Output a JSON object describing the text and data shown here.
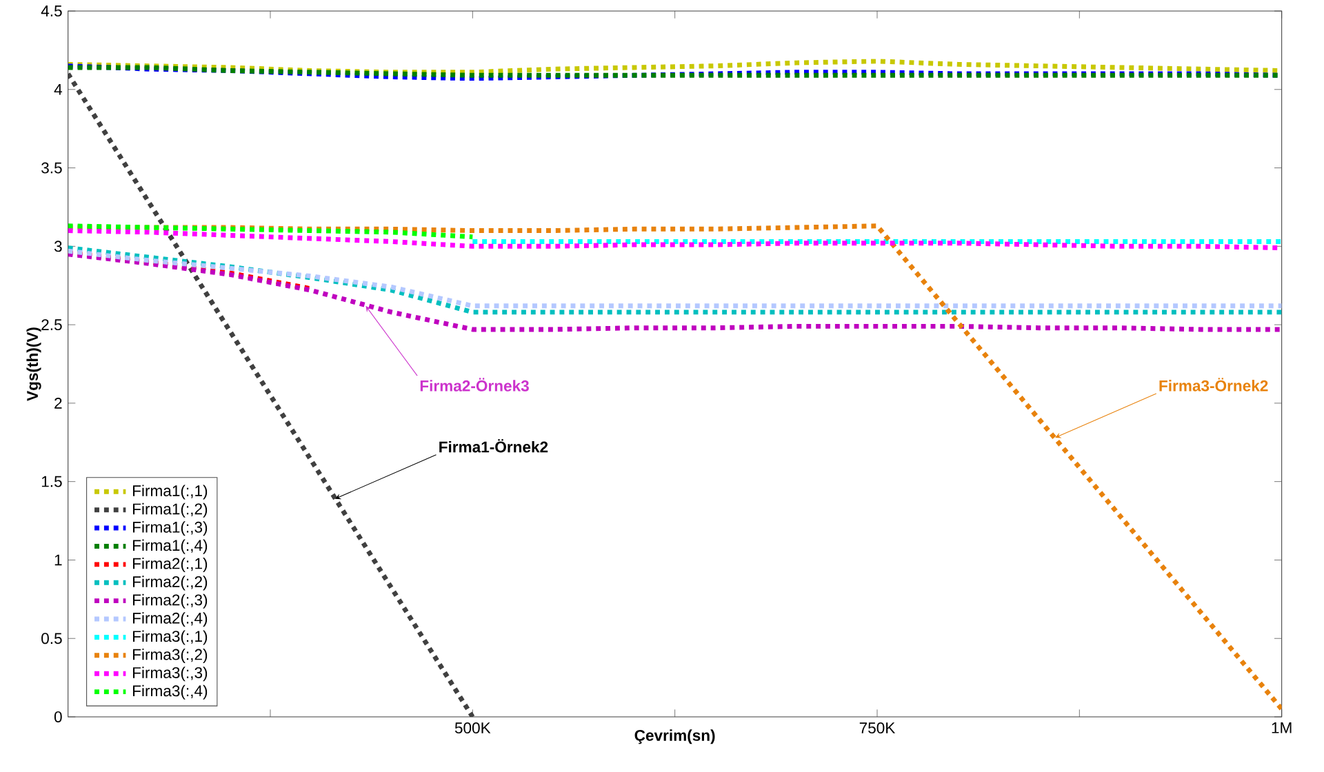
{
  "chart_data": {
    "type": "line",
    "xlabel": "Çevrim(sn)",
    "ylabel": "Vgs(th)(V)",
    "x": [
      250000,
      300000,
      350000,
      400000,
      450000,
      500000,
      550000,
      600000,
      650000,
      700000,
      750000,
      800000,
      850000,
      900000,
      950000,
      1000000
    ],
    "xlim": [
      250000,
      1000000
    ],
    "ylim": [
      0,
      4.5
    ],
    "xticks": [
      {
        "value": 375000,
        "label": null
      },
      {
        "value": 500000,
        "label": "500K"
      },
      {
        "value": 625000,
        "label": null
      },
      {
        "value": 750000,
        "label": "750K"
      },
      {
        "value": 875000,
        "label": null
      },
      {
        "value": 1000000,
        "label": "1M"
      }
    ],
    "yticks": [
      0,
      0.5,
      1,
      1.5,
      2,
      2.5,
      3,
      3.5,
      4,
      4.5
    ],
    "grid": false,
    "legend": "bottom left",
    "line_style": "dotted",
    "marker": "none",
    "series": [
      {
        "name": "Firma1(:,1)",
        "color": "#c8c800",
        "values": [
          4.16,
          4.15,
          4.14,
          4.12,
          4.11,
          4.11,
          4.13,
          4.14,
          4.15,
          4.17,
          4.18,
          4.16,
          4.15,
          4.14,
          4.13,
          4.12
        ]
      },
      {
        "name": "Firma1(:,2)",
        "color": "#404040",
        "x": [
          250000,
          500000
        ],
        "values": [
          4.1,
          0
        ]
      },
      {
        "name": "Firma1(:,3)",
        "color": "#0000ff",
        "values": [
          4.15,
          4.13,
          4.12,
          4.1,
          4.08,
          4.07,
          4.08,
          4.09,
          4.1,
          4.11,
          4.11,
          4.1,
          4.1,
          4.1,
          4.1,
          4.09
        ]
      },
      {
        "name": "Firma1(:,4)",
        "color": "#007f00",
        "values": [
          4.14,
          4.14,
          4.12,
          4.11,
          4.1,
          4.09,
          4.09,
          4.09,
          4.09,
          4.09,
          4.09,
          4.09,
          4.09,
          4.09,
          4.09,
          4.09
        ]
      },
      {
        "name": "Firma2(:,1)",
        "color": "#ff0000",
        "values": [
          2.96,
          2.9,
          2.83,
          2.73,
          null,
          null,
          null,
          null,
          null,
          null,
          null,
          null,
          null,
          null,
          null,
          null
        ]
      },
      {
        "name": "Firma2(:,2)",
        "color": "#00bfbf",
        "values": [
          2.99,
          2.93,
          2.87,
          2.8,
          2.72,
          2.58,
          2.58,
          2.58,
          2.58,
          2.58,
          2.58,
          2.58,
          2.58,
          2.58,
          2.58,
          2.58
        ]
      },
      {
        "name": "Firma2(:,3)",
        "color": "#bf00bf",
        "values": [
          2.95,
          2.89,
          2.82,
          2.72,
          2.58,
          2.47,
          2.47,
          2.48,
          2.48,
          2.49,
          2.49,
          2.49,
          2.48,
          2.48,
          2.47,
          2.47
        ]
      },
      {
        "name": "Firma2(:,4)",
        "color": "#b4c8ff",
        "values": [
          2.97,
          2.91,
          2.86,
          2.81,
          2.74,
          2.62,
          2.62,
          2.62,
          2.62,
          2.62,
          2.62,
          2.62,
          2.62,
          2.62,
          2.62,
          2.62
        ]
      },
      {
        "name": "Firma3(:,1)",
        "color": "#00ffff",
        "values": [
          null,
          null,
          null,
          null,
          null,
          3.03,
          3.03,
          3.03,
          3.03,
          3.03,
          3.03,
          3.03,
          3.03,
          3.03,
          3.03,
          3.03
        ]
      },
      {
        "name": "Firma3(:,2)",
        "color": "#e8820c",
        "x": [
          250000,
          300000,
          350000,
          400000,
          450000,
          500000,
          550000,
          600000,
          650000,
          700000,
          750000,
          1000000
        ],
        "values": [
          3.12,
          3.12,
          3.12,
          3.11,
          3.11,
          3.1,
          3.1,
          3.11,
          3.11,
          3.12,
          3.13,
          0.05
        ]
      },
      {
        "name": "Firma3(:,3)",
        "color": "#ff00ff",
        "values": [
          3.1,
          3.09,
          3.07,
          3.05,
          3.03,
          3.0,
          3.0,
          3.01,
          3.01,
          3.02,
          3.02,
          3.02,
          3.01,
          3.0,
          3.0,
          2.99
        ]
      },
      {
        "name": "Firma3(:,4)",
        "color": "#00ff00",
        "values": [
          3.13,
          3.12,
          3.11,
          3.1,
          3.09,
          3.06,
          null,
          null,
          null,
          null,
          null,
          null,
          null,
          null,
          null,
          null
        ]
      }
    ],
    "annotations": [
      {
        "text": "Firma2-Örnek3",
        "x": 434000,
        "y": 2.62
      },
      {
        "text": "Firma1-Örnek2",
        "x": 415000,
        "y": 1.39
      },
      {
        "text": "Firma3-Örnek2",
        "x": 860000,
        "y": 1.78
      }
    ]
  }
}
